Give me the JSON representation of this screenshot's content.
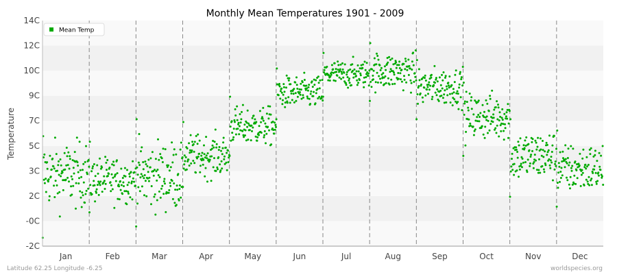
{
  "chart_data": {
    "type": "scatter",
    "title": "Monthly Mean Temperatures 1901 - 2009",
    "xlabel": "",
    "ylabel": "Temperature",
    "y_tick_labels": [
      "-2C",
      "-0C",
      "2C",
      "3C",
      "5C",
      "7C",
      "9C",
      "10C",
      "12C",
      "14C"
    ],
    "ylim": [
      -2,
      14
    ],
    "categories": [
      "Jan",
      "Feb",
      "Mar",
      "Apr",
      "May",
      "Jun",
      "Jul",
      "Aug",
      "Sep",
      "Oct",
      "Nov",
      "Dec"
    ],
    "grid": "alternating horizontal bands, dashed vertical month separators",
    "legend_position": "top-left",
    "series": [
      {
        "name": "Mean Temp",
        "color": "#00aa00",
        "monthly_summary": [
          {
            "month": "Jan",
            "mean": 3.1,
            "min": -1.4,
            "max": 5.8
          },
          {
            "month": "Feb",
            "mean": 2.7,
            "min": 0.4,
            "max": 5.4
          },
          {
            "month": "Mar",
            "mean": 3.0,
            "min": -0.6,
            "max": 7.0
          },
          {
            "month": "Apr",
            "mean": 4.4,
            "min": 2.2,
            "max": 6.8
          },
          {
            "month": "May",
            "mean": 6.5,
            "min": 4.4,
            "max": 8.6
          },
          {
            "month": "Jun",
            "mean": 8.9,
            "min": 7.0,
            "max": 10.6
          },
          {
            "month": "Jul",
            "mean": 10.2,
            "min": 8.6,
            "max": 11.7
          },
          {
            "month": "Aug",
            "mean": 10.4,
            "min": 8.3,
            "max": 12.4
          },
          {
            "month": "Sep",
            "mean": 9.3,
            "min": 7.0,
            "max": 11.2
          },
          {
            "month": "Oct",
            "mean": 7.2,
            "min": 4.4,
            "max": 9.6
          },
          {
            "month": "Nov",
            "mean": 4.4,
            "min": 1.5,
            "max": 7.0
          },
          {
            "month": "Dec",
            "mean": 3.5,
            "min": 0.8,
            "max": 6.2
          }
        ]
      }
    ]
  },
  "footer": {
    "left": "Latitude 62.25 Longitude -6.25",
    "right": "worldspecies.org"
  }
}
